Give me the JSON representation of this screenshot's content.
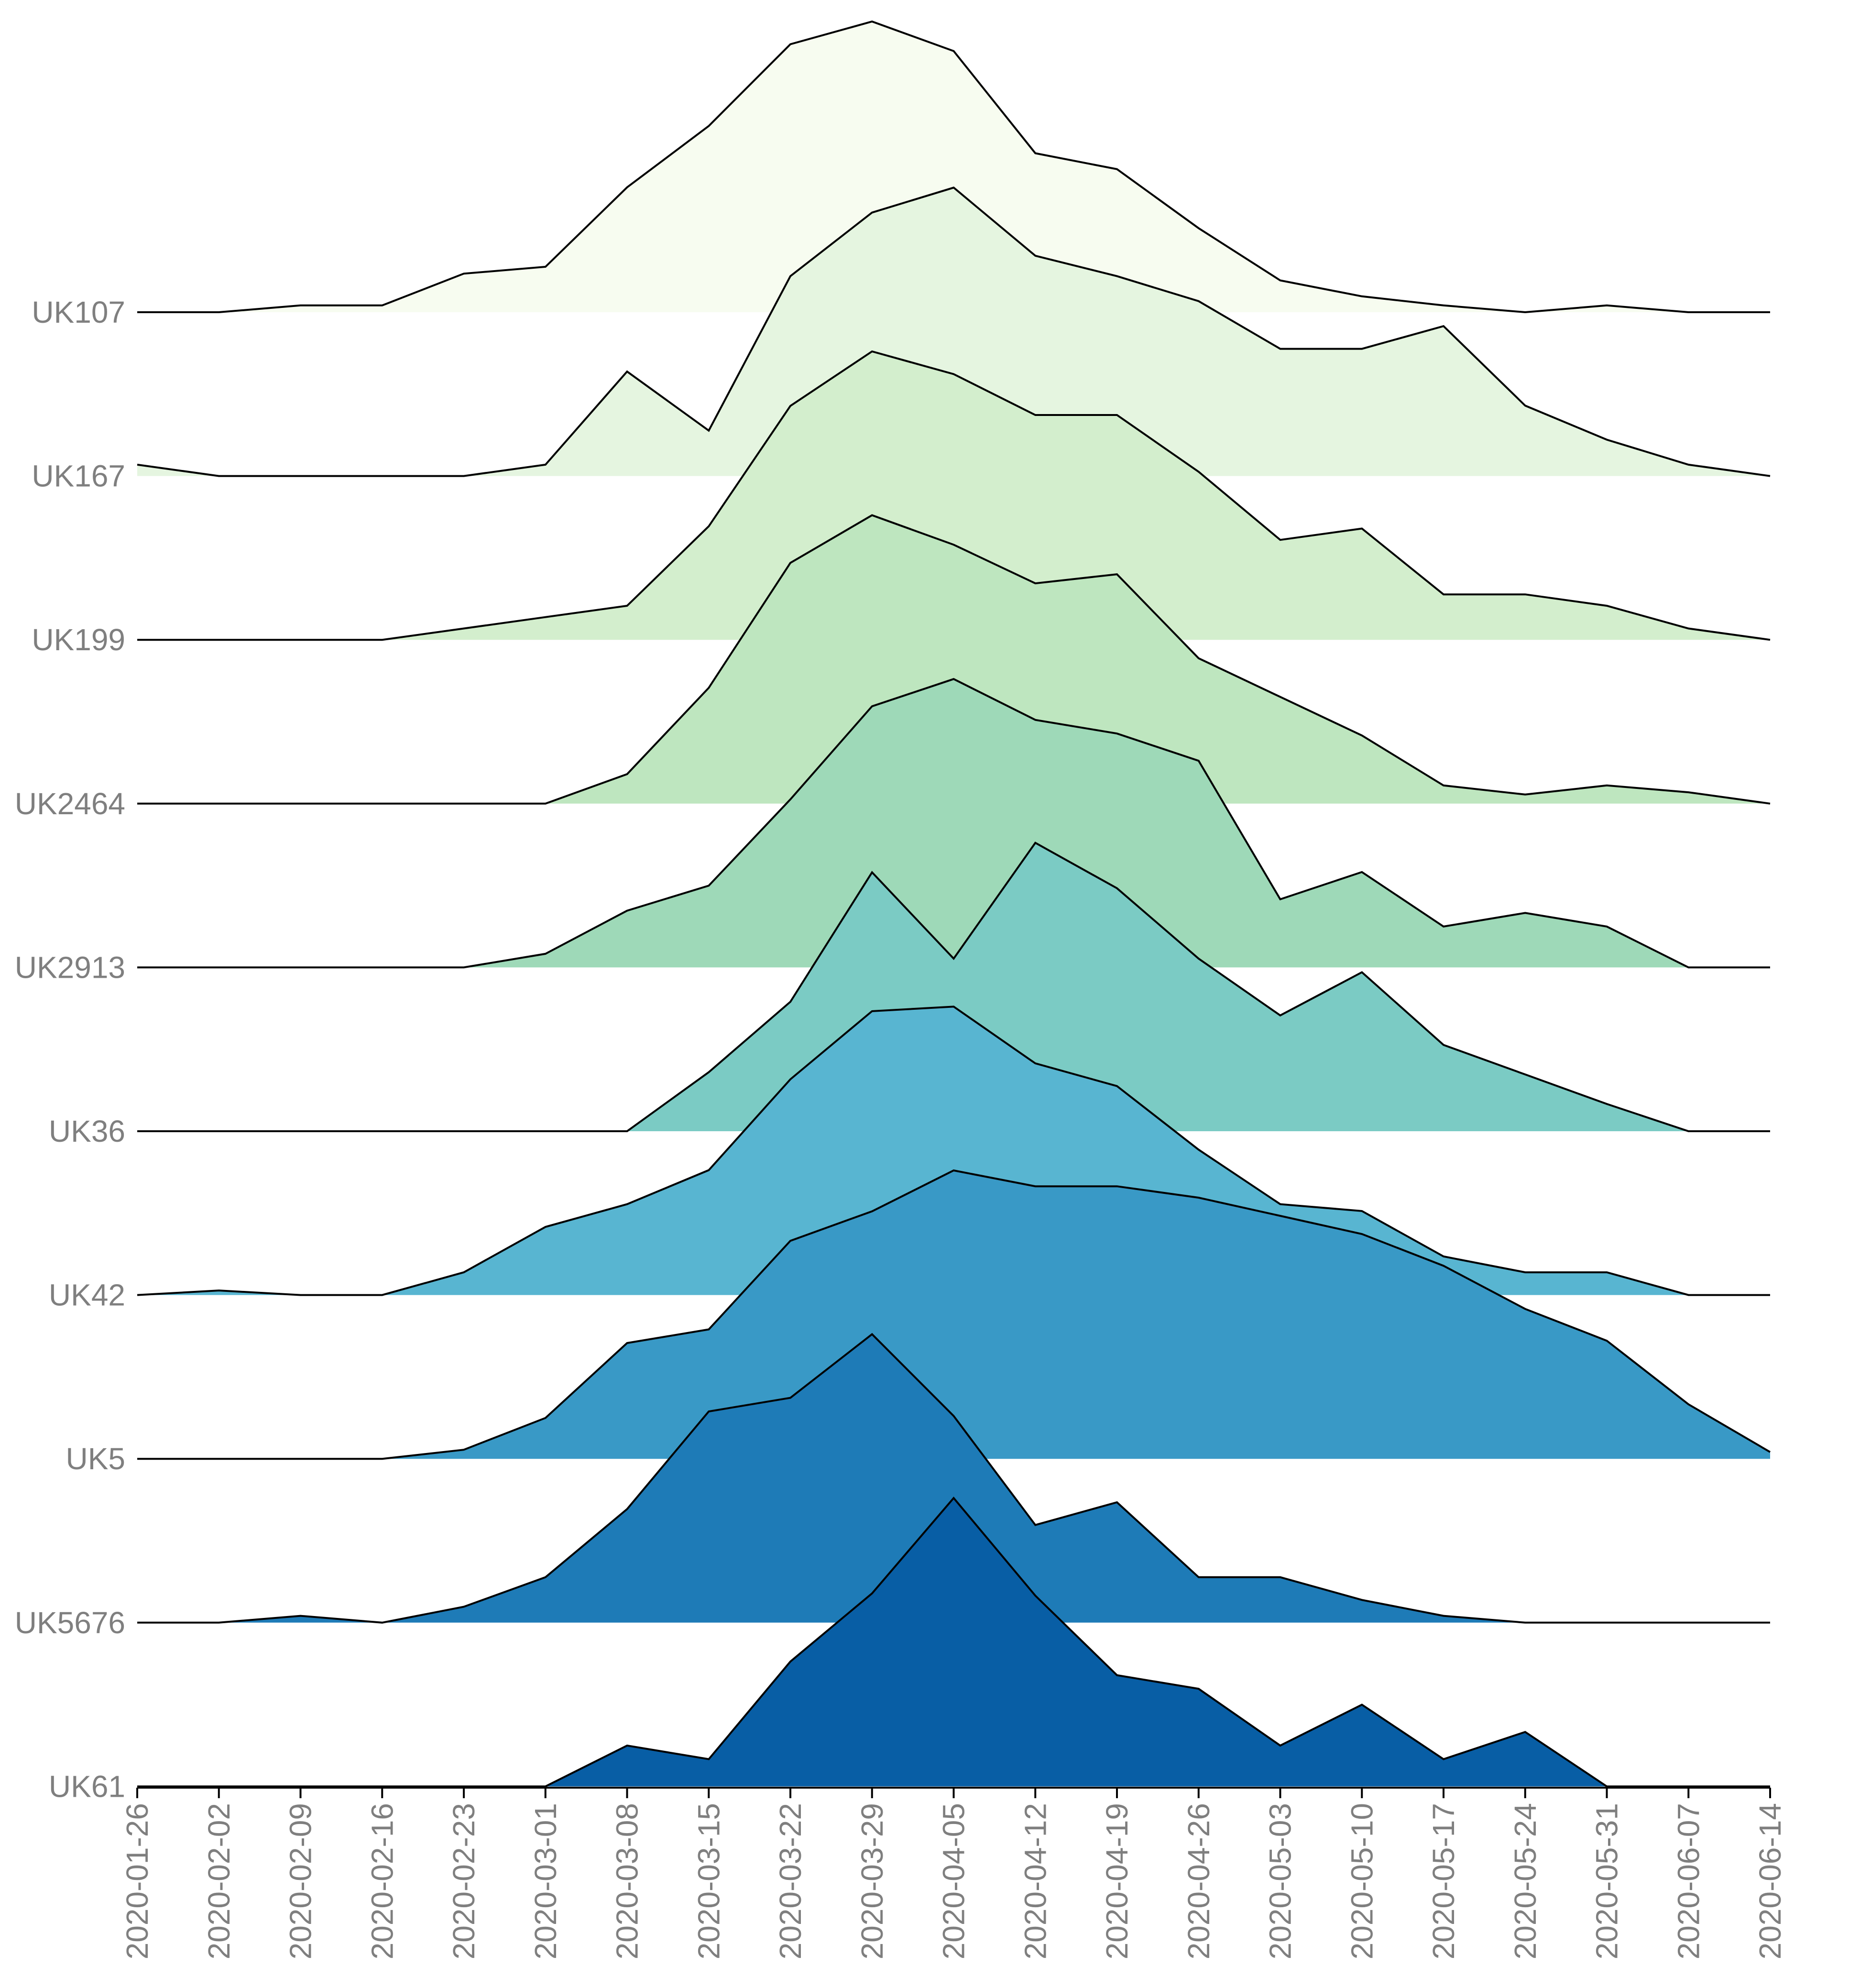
{
  "chart_data": {
    "type": "area",
    "chart_style": "ridgeline",
    "categories": [
      "2020-01-26",
      "2020-02-02",
      "2020-02-09",
      "2020-02-16",
      "2020-02-23",
      "2020-03-01",
      "2020-03-08",
      "2020-03-15",
      "2020-03-22",
      "2020-03-29",
      "2020-04-05",
      "2020-04-12",
      "2020-04-19",
      "2020-04-26",
      "2020-05-03",
      "2020-05-10",
      "2020-05-17",
      "2020-05-24",
      "2020-05-31",
      "2020-06-07",
      "2020-06-14"
    ],
    "grid": false,
    "legend": "none",
    "series": [
      {
        "name": "UK107",
        "color": "#f7fcf0",
        "values": [
          0.0,
          0.0,
          0.03,
          0.03,
          0.17,
          0.2,
          0.55,
          0.82,
          1.18,
          1.28,
          1.15,
          0.7,
          0.63,
          0.37,
          0.14,
          0.07,
          0.03,
          0.0,
          0.03,
          0.0,
          0.0
        ]
      },
      {
        "name": "UK167",
        "color": "#e5f5e0",
        "values": [
          0.05,
          0.0,
          0.0,
          0.0,
          0.0,
          0.05,
          0.46,
          0.2,
          0.88,
          1.16,
          1.27,
          0.97,
          0.88,
          0.77,
          0.56,
          0.56,
          0.66,
          0.31,
          0.16,
          0.05,
          0.0
        ]
      },
      {
        "name": "UK199",
        "color": "#d3eecd",
        "values": [
          0.0,
          0.0,
          0.0,
          0.0,
          0.05,
          0.1,
          0.15,
          0.5,
          1.03,
          1.27,
          1.17,
          0.99,
          0.99,
          0.74,
          0.44,
          0.49,
          0.2,
          0.2,
          0.15,
          0.05,
          0.0
        ]
      },
      {
        "name": "UK2464",
        "color": "#bee6bf",
        "values": [
          0.0,
          0.0,
          0.0,
          0.0,
          0.0,
          0.0,
          0.13,
          0.51,
          1.06,
          1.27,
          1.14,
          0.97,
          1.01,
          0.64,
          0.47,
          0.3,
          0.08,
          0.04,
          0.08,
          0.05,
          0.0
        ]
      },
      {
        "name": "UK2913",
        "color": "#9ed9b8",
        "values": [
          0.0,
          0.0,
          0.0,
          0.0,
          0.0,
          0.06,
          0.25,
          0.36,
          0.74,
          1.15,
          1.27,
          1.09,
          1.03,
          0.91,
          0.3,
          0.42,
          0.18,
          0.24,
          0.18,
          0.0,
          0.0
        ]
      },
      {
        "name": "UK36",
        "color": "#7bcbc4",
        "values": [
          0.0,
          0.0,
          0.0,
          0.0,
          0.0,
          0.0,
          0.0,
          0.26,
          0.57,
          1.14,
          0.76,
          1.27,
          1.07,
          0.76,
          0.51,
          0.7,
          0.38,
          0.25,
          0.12,
          0.0,
          0.0
        ]
      },
      {
        "name": "UK42",
        "color": "#58b5d1",
        "values": [
          0.0,
          0.02,
          0.0,
          0.0,
          0.1,
          0.3,
          0.4,
          0.55,
          0.95,
          1.25,
          1.27,
          1.02,
          0.92,
          0.64,
          0.4,
          0.37,
          0.17,
          0.1,
          0.1,
          0.0,
          0.0
        ]
      },
      {
        "name": "UK5",
        "color": "#3999c6",
        "values": [
          0.0,
          0.0,
          0.0,
          0.0,
          0.04,
          0.18,
          0.51,
          0.57,
          0.96,
          1.09,
          1.27,
          1.2,
          1.2,
          1.15,
          1.07,
          0.99,
          0.85,
          0.66,
          0.52,
          0.24,
          0.03
        ]
      },
      {
        "name": "UK5676",
        "color": "#1e7bb7",
        "values": [
          0.0,
          0.0,
          0.03,
          0.0,
          0.07,
          0.2,
          0.5,
          0.93,
          0.99,
          1.27,
          0.91,
          0.43,
          0.53,
          0.2,
          0.2,
          0.1,
          0.03,
          0.0,
          0.0,
          0.0,
          0.0
        ]
      },
      {
        "name": "UK61",
        "color": "#085ea5",
        "values": [
          0.0,
          0.0,
          0.0,
          0.0,
          0.0,
          0.0,
          0.18,
          0.12,
          0.55,
          0.85,
          1.27,
          0.84,
          0.49,
          0.43,
          0.18,
          0.36,
          0.12,
          0.24,
          0.0,
          0.0,
          0.0
        ]
      }
    ]
  }
}
